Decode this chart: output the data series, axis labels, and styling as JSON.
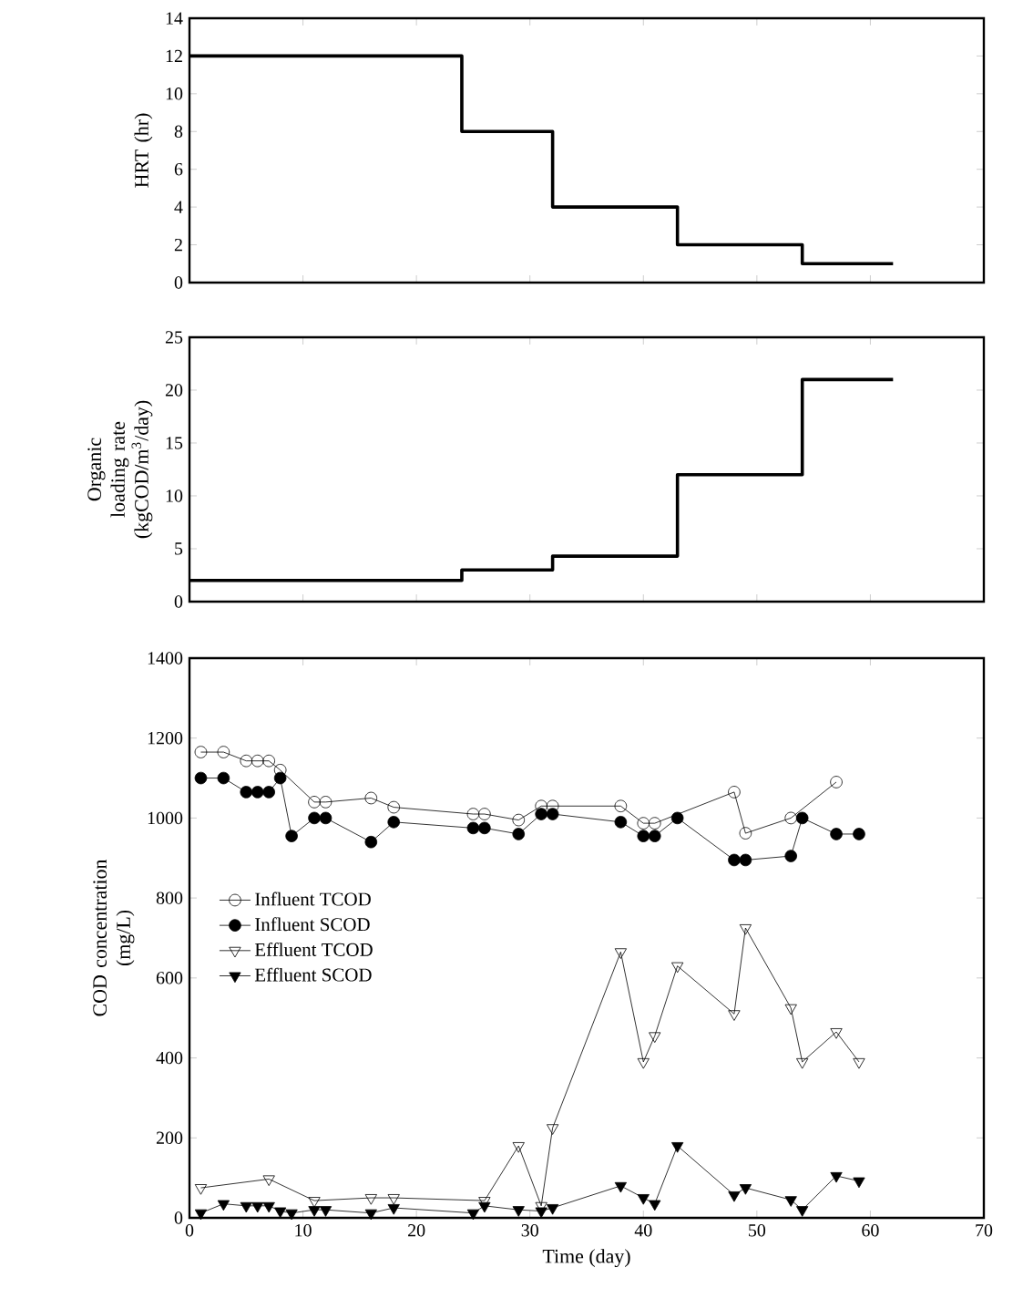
{
  "chart_data": [
    {
      "type": "step",
      "ylabel": "HRT (hr)",
      "xlim": [
        0,
        70
      ],
      "ylim": [
        0,
        14
      ],
      "xticks": [
        0,
        10,
        20,
        30,
        40,
        50,
        60,
        70
      ],
      "yticks": [
        0,
        2,
        4,
        6,
        8,
        10,
        12,
        14
      ],
      "tick_labels": "y",
      "x": [
        0,
        24,
        32,
        43,
        54,
        62
      ],
      "series": [
        {
          "color": "#000000",
          "values": [
            12,
            8,
            4,
            2,
            1,
            1
          ]
        }
      ]
    },
    {
      "type": "step",
      "ylabel": "Organic loading rate (kgCOD/m$^{3}$/day)",
      "xlim": [
        0,
        70
      ],
      "ylim": [
        0,
        25
      ],
      "xticks": [
        0,
        10,
        20,
        30,
        40,
        50,
        60,
        70
      ],
      "yticks": [
        0,
        5,
        10,
        15,
        20,
        25
      ],
      "tick_labels": "y",
      "x": [
        0,
        24,
        32,
        43,
        54,
        62
      ],
      "series": [
        {
          "color": "#000000",
          "values": [
            2,
            3,
            4.3,
            12,
            21,
            21
          ]
        }
      ]
    },
    {
      "type": "line",
      "xlabel": "Time (day)",
      "ylabel": "COD concentration (mg/L)",
      "xlim": [
        0,
        70
      ],
      "ylim": [
        0,
        1400
      ],
      "xticks": [
        0,
        10,
        20,
        30,
        40,
        50,
        60,
        70
      ],
      "yticks": [
        0,
        200,
        400,
        600,
        800,
        1000,
        1200,
        1400
      ],
      "legend": "left",
      "line_style": "solid",
      "series": [
        {
          "name": "Influent TCOD",
          "color": "#000000",
          "marker": "circle-open",
          "x": [
            1,
            3,
            5,
            6,
            7,
            8,
            11,
            12,
            16,
            18,
            25,
            26,
            29,
            31,
            32,
            38,
            40,
            41,
            48,
            49,
            53,
            57
          ],
          "values": [
            1165,
            1165,
            1143,
            1143,
            1143,
            1120,
            1040,
            1040,
            1050,
            1027,
            1010,
            1010,
            995,
            1030,
            1030,
            1030,
            987,
            987,
            1065,
            962,
            1000,
            1090
          ]
        },
        {
          "name": "Influent SCOD",
          "color": "#000000",
          "marker": "circle",
          "x": [
            1,
            3,
            5,
            6,
            7,
            8,
            9,
            11,
            12,
            16,
            18,
            25,
            26,
            29,
            31,
            32,
            38,
            40,
            41,
            43,
            48,
            49,
            53,
            54,
            57,
            59
          ],
          "values": [
            1100,
            1100,
            1065,
            1065,
            1065,
            1100,
            955,
            1000,
            1000,
            940,
            990,
            975,
            975,
            960,
            1010,
            1010,
            990,
            955,
            955,
            1000,
            895,
            895,
            905,
            1000,
            960,
            960
          ]
        },
        {
          "name": "Effluent TCOD",
          "color": "#000000",
          "marker": "triangle-down-open",
          "x": [
            1,
            7,
            11,
            16,
            18,
            26,
            29,
            31,
            32,
            38,
            40,
            41,
            43,
            48,
            49,
            53,
            54,
            57,
            59
          ],
          "values": [
            75,
            97,
            43,
            50,
            50,
            43,
            180,
            30,
            225,
            665,
            390,
            455,
            630,
            510,
            725,
            525,
            390,
            465,
            390
          ]
        },
        {
          "name": "Effluent SCOD",
          "color": "#000000",
          "marker": "triangle-down",
          "x": [
            1,
            3,
            5,
            6,
            7,
            8,
            9,
            11,
            12,
            16,
            18,
            25,
            26,
            29,
            31,
            32,
            38,
            40,
            41,
            43,
            48,
            49,
            53,
            54,
            57,
            59
          ],
          "values": [
            12,
            35,
            30,
            30,
            30,
            17,
            12,
            20,
            20,
            12,
            25,
            12,
            30,
            20,
            17,
            25,
            80,
            50,
            35,
            180,
            57,
            75,
            45,
            20,
            105,
            92
          ]
        }
      ]
    }
  ]
}
